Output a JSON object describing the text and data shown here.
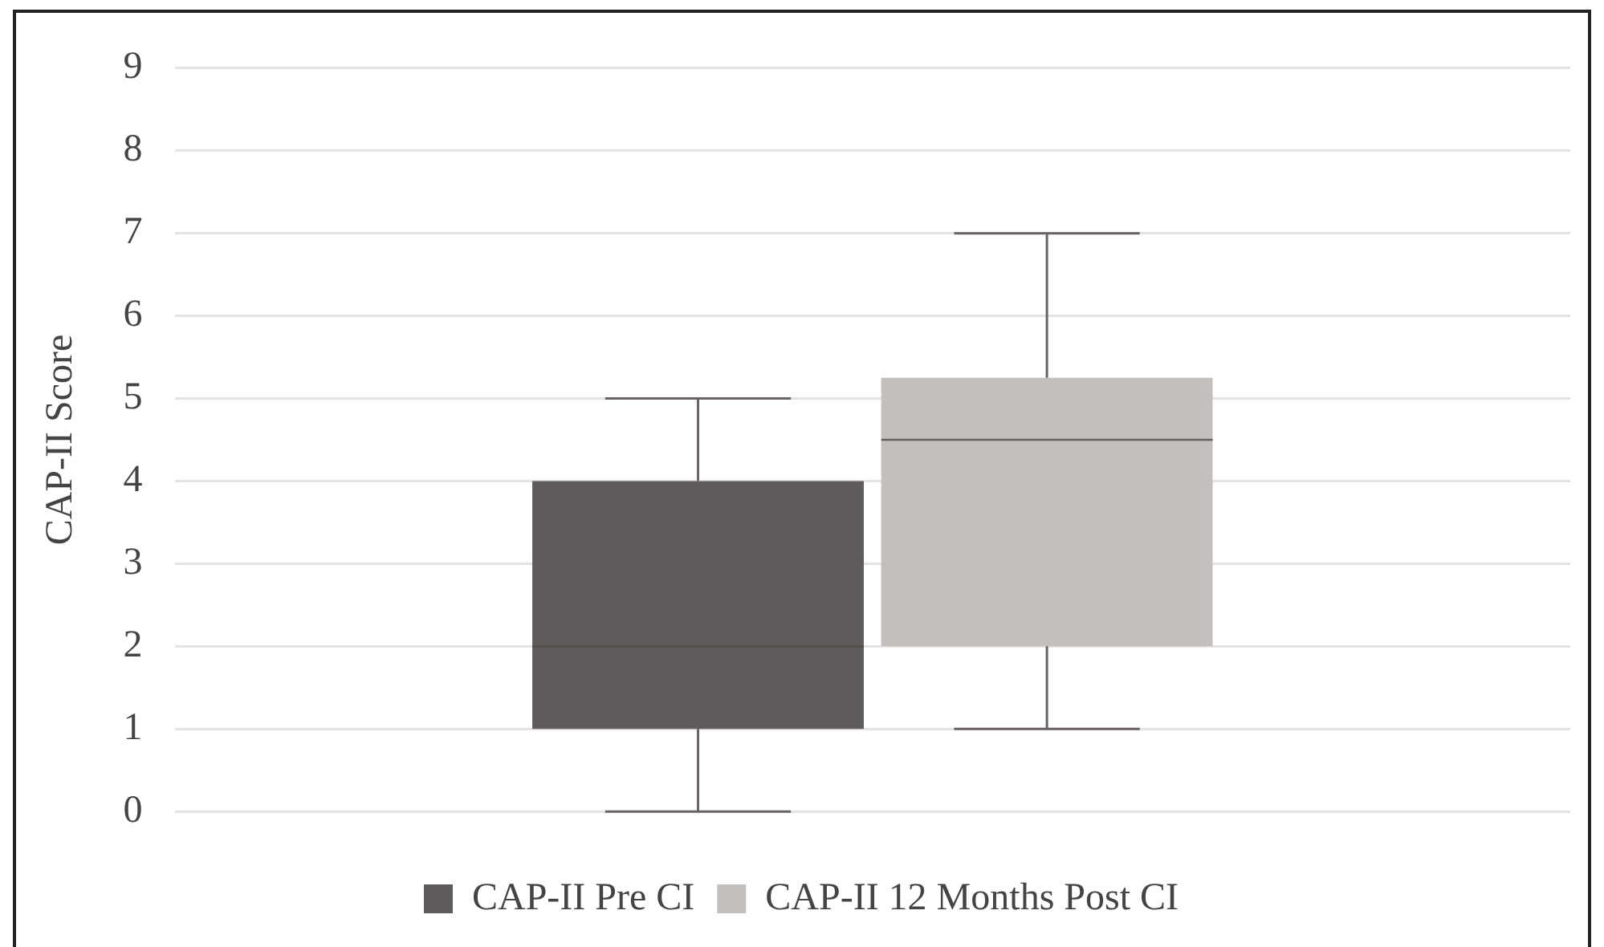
{
  "chart_data": {
    "type": "box",
    "ylabel": "CAP-II Score",
    "categories": [
      null
    ],
    "series": [
      {
        "name": "CAP-II Pre CI",
        "color": "#5f5b5b",
        "boxes": [
          {
            "low": 0,
            "q1": 1,
            "median": 2,
            "q3": 4,
            "high": 5
          }
        ]
      },
      {
        "name": "CAP-II 12 Months Post CI",
        "color": "#c2bfbd",
        "boxes": [
          {
            "low": 1,
            "q1": 2,
            "median": 4.5,
            "q3": 5.25,
            "high": 7
          }
        ]
      }
    ],
    "ylim": [
      0,
      9
    ],
    "yticks": [
      0,
      1,
      2,
      3,
      4,
      5,
      6,
      7,
      8,
      9
    ],
    "grid": "y",
    "legend": "bottom"
  }
}
